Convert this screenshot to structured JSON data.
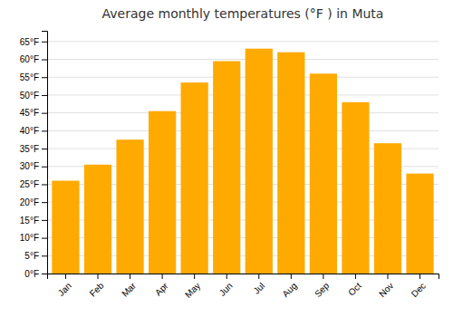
{
  "chart_data": {
    "type": "bar",
    "title": "Average monthly temperatures (°F ) in Muta",
    "categories": [
      "Jan",
      "Feb",
      "Mar",
      "Apr",
      "May",
      "Jun",
      "Jul",
      "Aug",
      "Sep",
      "Oct",
      "Nov",
      "Dec"
    ],
    "values": [
      26,
      30.5,
      37.5,
      45.5,
      53.5,
      59.5,
      63,
      62,
      56,
      48,
      36.5,
      28
    ],
    "color": "#FFAA00",
    "ylim": [
      0,
      68
    ],
    "yticks": [
      {
        "value": 0,
        "label": "0°F"
      },
      {
        "value": 5,
        "label": "5°F"
      },
      {
        "value": 10,
        "label": "10°F"
      },
      {
        "value": 15,
        "label": "15°F"
      },
      {
        "value": 20,
        "label": "20°F"
      },
      {
        "value": 25,
        "label": "25°F"
      },
      {
        "value": 30,
        "label": "30°F"
      },
      {
        "value": 35,
        "label": "35°F"
      },
      {
        "value": 40,
        "label": "40°F"
      },
      {
        "value": 45,
        "label": "45°F"
      },
      {
        "value": 50,
        "label": "50°F"
      },
      {
        "value": 55,
        "label": "55°F"
      },
      {
        "value": 60,
        "label": "60°F"
      },
      {
        "value": 65,
        "label": "65°F"
      }
    ],
    "grid": true
  }
}
